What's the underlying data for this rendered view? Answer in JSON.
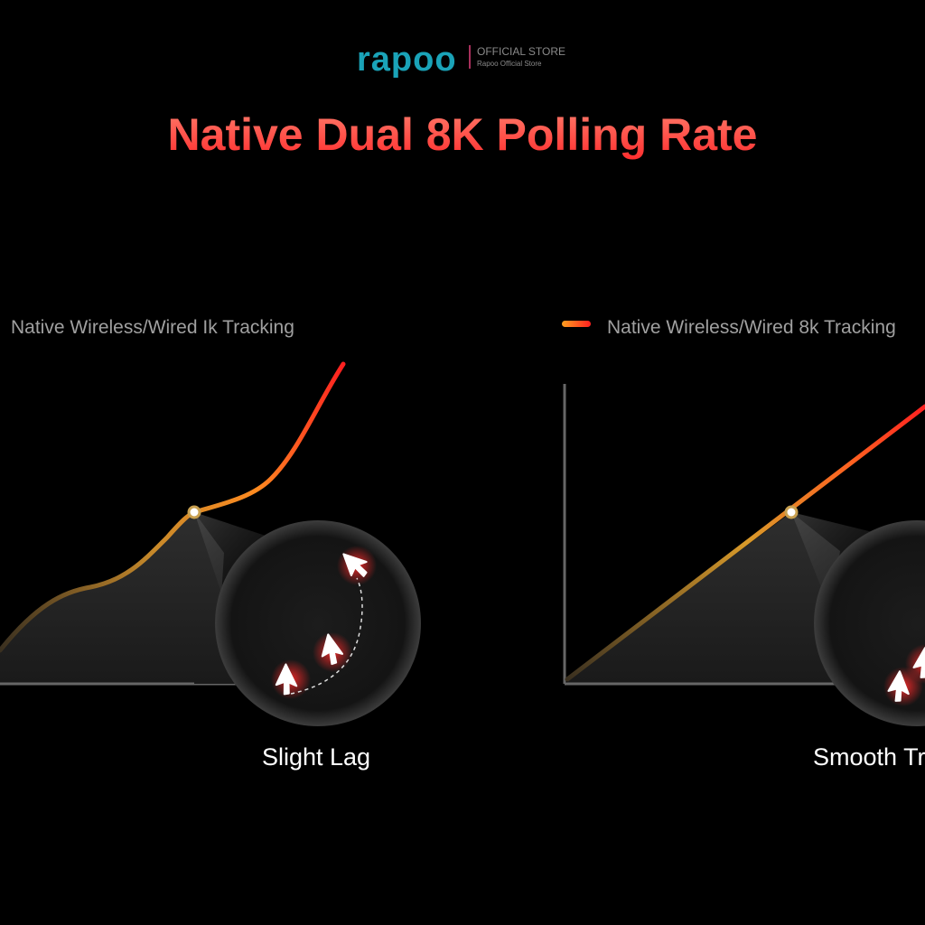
{
  "header": {
    "brand": "rapoo",
    "store_label": "OFFICIAL STORE",
    "store_name": "Rapoo Official Store",
    "title": "Native Dual 8K Polling Rate"
  },
  "panels": [
    {
      "legend": "Native Wireless/Wired Ik Tracking",
      "caption": "Slight Lag"
    },
    {
      "legend": "Native Wireless/Wired 8k Tracking",
      "caption": "Smooth Tr"
    }
  ]
}
